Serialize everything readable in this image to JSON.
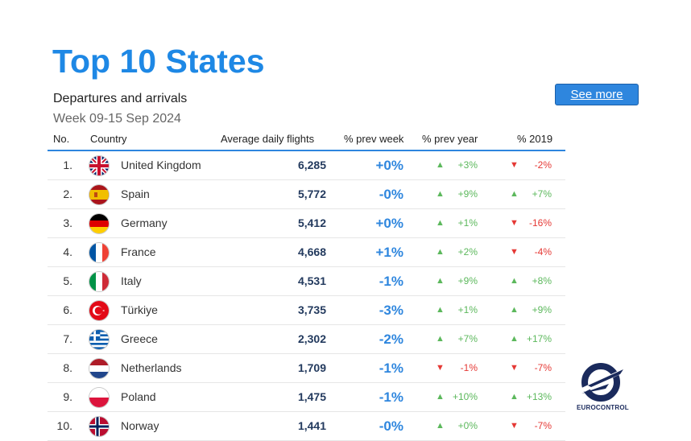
{
  "title": "Top 10 States",
  "subtitle": "Departures and arrivals",
  "week": "Week 09-15 Sep 2024",
  "see_more": "See more",
  "logo_text": "EUROCONTROL",
  "headers": {
    "no": "No.",
    "country": "Country",
    "flights": "Average daily flights",
    "prev_week": "% prev week",
    "prev_year": "% prev year",
    "y2019": "% 2019"
  },
  "colors": {
    "accent": "#1e88e5",
    "up": "#5cb85c",
    "down": "#e53935"
  },
  "rows": [
    {
      "no": "1.",
      "country": "United Kingdom",
      "flag": "uk-flag-icon",
      "flights": "6,285",
      "prev_week": "+0%",
      "prev_year": "+3%",
      "prev_year_dir": "up",
      "y2019": "-2%",
      "y2019_dir": "down"
    },
    {
      "no": "2.",
      "country": "Spain",
      "flag": "spain-flag-icon",
      "flights": "5,772",
      "prev_week": "-0%",
      "prev_year": "+9%",
      "prev_year_dir": "up",
      "y2019": "+7%",
      "y2019_dir": "up"
    },
    {
      "no": "3.",
      "country": "Germany",
      "flag": "germany-flag-icon",
      "flights": "5,412",
      "prev_week": "+0%",
      "prev_year": "+1%",
      "prev_year_dir": "up",
      "y2019": "-16%",
      "y2019_dir": "down"
    },
    {
      "no": "4.",
      "country": "France",
      "flag": "france-flag-icon",
      "flights": "4,668",
      "prev_week": "+1%",
      "prev_year": "+2%",
      "prev_year_dir": "up",
      "y2019": "-4%",
      "y2019_dir": "down"
    },
    {
      "no": "5.",
      "country": "Italy",
      "flag": "italy-flag-icon",
      "flights": "4,531",
      "prev_week": "-1%",
      "prev_year": "+9%",
      "prev_year_dir": "up",
      "y2019": "+8%",
      "y2019_dir": "up"
    },
    {
      "no": "6.",
      "country": "Türkiye",
      "flag": "turkiye-flag-icon",
      "flights": "3,735",
      "prev_week": "-3%",
      "prev_year": "+1%",
      "prev_year_dir": "up",
      "y2019": "+9%",
      "y2019_dir": "up"
    },
    {
      "no": "7.",
      "country": "Greece",
      "flag": "greece-flag-icon",
      "flights": "2,302",
      "prev_week": "-2%",
      "prev_year": "+7%",
      "prev_year_dir": "up",
      "y2019": "+17%",
      "y2019_dir": "up"
    },
    {
      "no": "8.",
      "country": "Netherlands",
      "flag": "netherlands-flag-icon",
      "flights": "1,709",
      "prev_week": "-1%",
      "prev_year": "-1%",
      "prev_year_dir": "down",
      "y2019": "-7%",
      "y2019_dir": "down"
    },
    {
      "no": "9.",
      "country": "Poland",
      "flag": "poland-flag-icon",
      "flights": "1,475",
      "prev_week": "-1%",
      "prev_year": "+10%",
      "prev_year_dir": "up",
      "y2019": "+13%",
      "y2019_dir": "up"
    },
    {
      "no": "10.",
      "country": "Norway",
      "flag": "norway-flag-icon",
      "flights": "1,441",
      "prev_week": "-0%",
      "prev_year": "+0%",
      "prev_year_dir": "up",
      "y2019": "-7%",
      "y2019_dir": "down"
    }
  ]
}
